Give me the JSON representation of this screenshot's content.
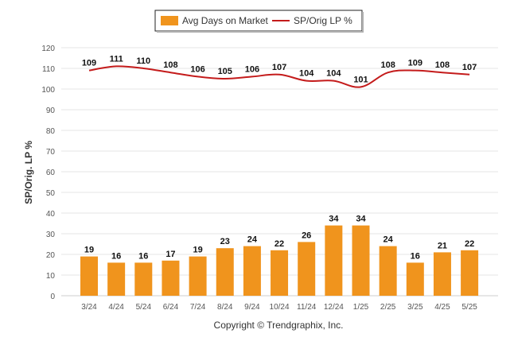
{
  "chart_data": {
    "type": "bar",
    "categories": [
      "3/24",
      "4/24",
      "5/24",
      "6/24",
      "7/24",
      "8/24",
      "9/24",
      "10/24",
      "11/24",
      "12/24",
      "1/25",
      "2/25",
      "3/25",
      "4/25",
      "5/25"
    ],
    "series": [
      {
        "name": "Avg Days on Market",
        "type": "bar",
        "color": "#f0941d",
        "values": [
          19,
          16,
          16,
          17,
          19,
          23,
          24,
          22,
          26,
          34,
          34,
          24,
          16,
          21,
          22
        ]
      },
      {
        "name": "SP/Orig LP %",
        "type": "line",
        "color": "#c41b1b",
        "values": [
          109,
          111,
          110,
          108,
          106,
          105,
          106,
          107,
          104,
          104,
          101,
          108,
          109,
          108,
          107
        ]
      }
    ],
    "ylabel": "SP/Orig. LP %",
    "yticks": [
      0,
      10,
      20,
      30,
      40,
      50,
      60,
      70,
      80,
      90,
      100,
      110,
      120
    ],
    "ylim": [
      0,
      120
    ],
    "grid": true,
    "legend_position": "top-center"
  },
  "footer": {
    "copyright": "Copyright © Trendgraphix, Inc."
  }
}
